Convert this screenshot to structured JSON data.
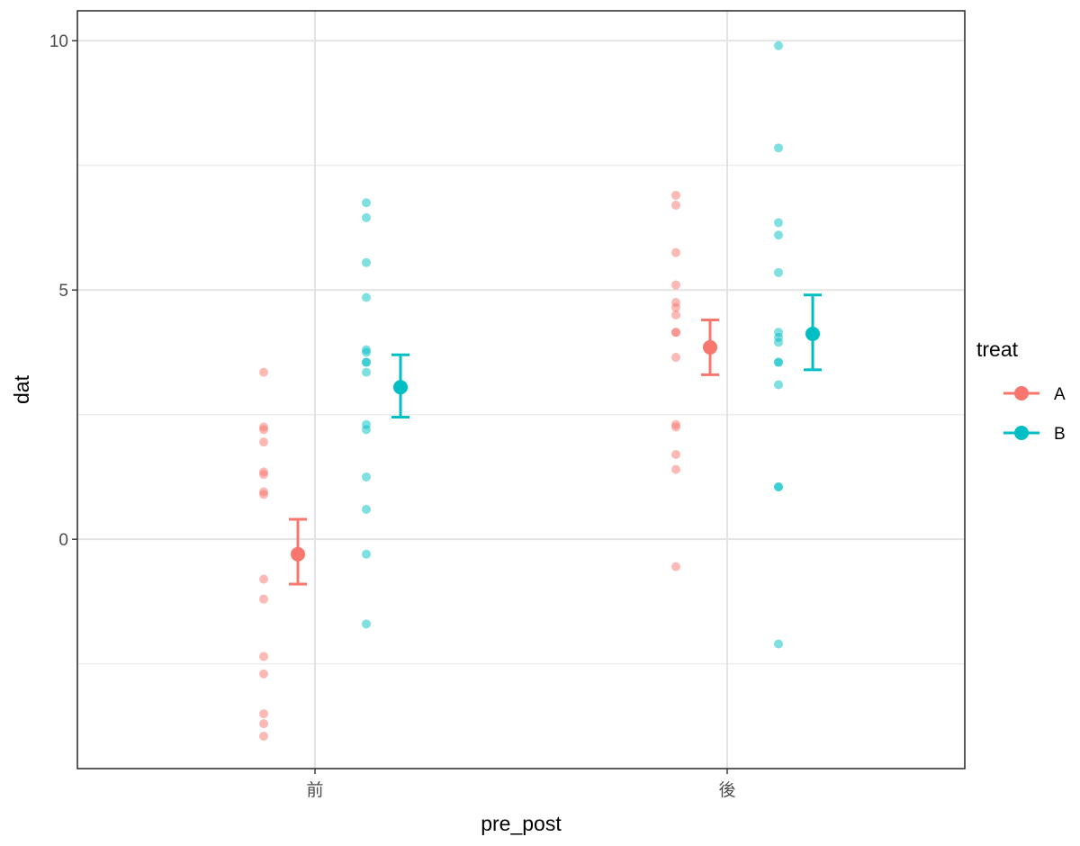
{
  "chart_data": {
    "type": "scatter",
    "xlabel": "pre_post",
    "ylabel": "dat",
    "categories": [
      "前",
      "後"
    ],
    "ylim": [
      -4.6,
      10.6
    ],
    "yticks": [
      0,
      5,
      10
    ],
    "y_minor_gridlines": [
      -2.5,
      2.5,
      7.5
    ],
    "grid": true,
    "legend": {
      "title": "treat",
      "placement": "right",
      "entries": [
        "A",
        "B"
      ]
    },
    "colors": {
      "A": "#f8766d",
      "B": "#00bfc4"
    },
    "series": [
      {
        "name": "A",
        "points": {
          "前": [
            3.35,
            2.25,
            2.2,
            1.95,
            1.35,
            1.3,
            0.95,
            0.9,
            -0.8,
            -1.2,
            -2.35,
            -2.7,
            -3.5,
            -3.7,
            -3.95
          ],
          "後": [
            6.9,
            6.7,
            5.75,
            5.1,
            4.75,
            4.65,
            4.5,
            4.15,
            4.15,
            3.65,
            2.3,
            2.25,
            1.7,
            1.4,
            -0.55
          ]
        },
        "mean": {
          "前": -0.3,
          "後": 3.85
        },
        "error": {
          "前": [
            -0.9,
            0.4
          ],
          "後": [
            3.3,
            4.4
          ]
        }
      },
      {
        "name": "B",
        "points": {
          "前": [
            6.75,
            6.45,
            5.55,
            4.85,
            3.8,
            3.75,
            3.55,
            3.55,
            3.35,
            2.3,
            2.2,
            1.25,
            0.6,
            -0.3,
            -1.7
          ],
          "後": [
            9.9,
            7.85,
            6.35,
            6.1,
            5.35,
            4.15,
            4.05,
            3.95,
            3.55,
            3.55,
            3.1,
            1.05,
            1.05,
            -2.1
          ]
        },
        "mean": {
          "前": 3.05,
          "後": 4.12
        },
        "error": {
          "前": [
            2.45,
            3.7
          ],
          "後": [
            3.4,
            4.9
          ]
        }
      }
    ]
  }
}
